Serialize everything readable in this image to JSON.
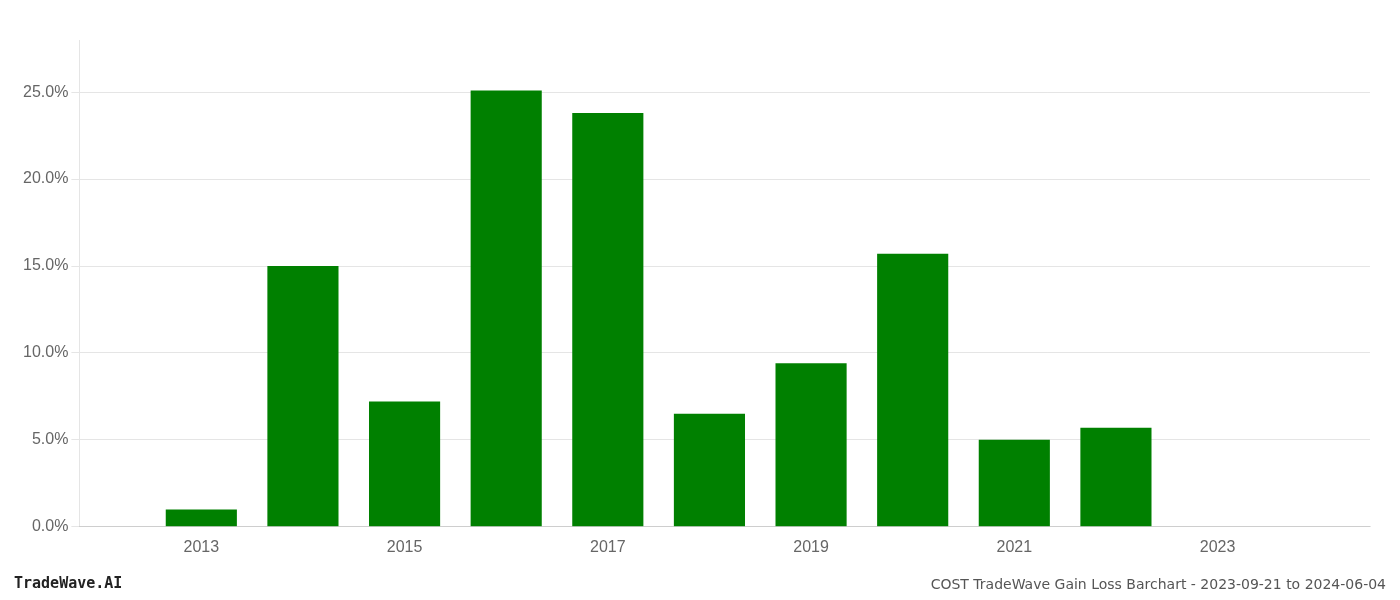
{
  "chart_data": {
    "type": "bar",
    "x": [
      2013,
      2014,
      2015,
      2016,
      2017,
      2018,
      2019,
      2020,
      2021,
      2022,
      2023
    ],
    "values": [
      0.01,
      0.15,
      0.072,
      0.251,
      0.238,
      0.065,
      0.094,
      0.157,
      0.05,
      0.057,
      0.0
    ],
    "color": "#008000",
    "xlim": [
      2011.8,
      2024.5
    ],
    "xticks": [
      2013,
      2015,
      2017,
      2019,
      2021,
      2023
    ],
    "ylim": [
      0,
      0.28
    ],
    "yticks": [
      {
        "value": 0.0,
        "label": "0.0%"
      },
      {
        "value": 0.05,
        "label": "5.0%"
      },
      {
        "value": 0.1,
        "label": "10.0%"
      },
      {
        "value": 0.15,
        "label": "15.0%"
      },
      {
        "value": 0.2,
        "label": "20.0%"
      },
      {
        "value": 0.25,
        "label": "25.0%"
      }
    ],
    "grid": "y",
    "annotations": [
      "TradeWave.AI",
      "COST TradeWave Gain Loss Barchart - 2023-09-21 to 2024-06-04"
    ]
  }
}
